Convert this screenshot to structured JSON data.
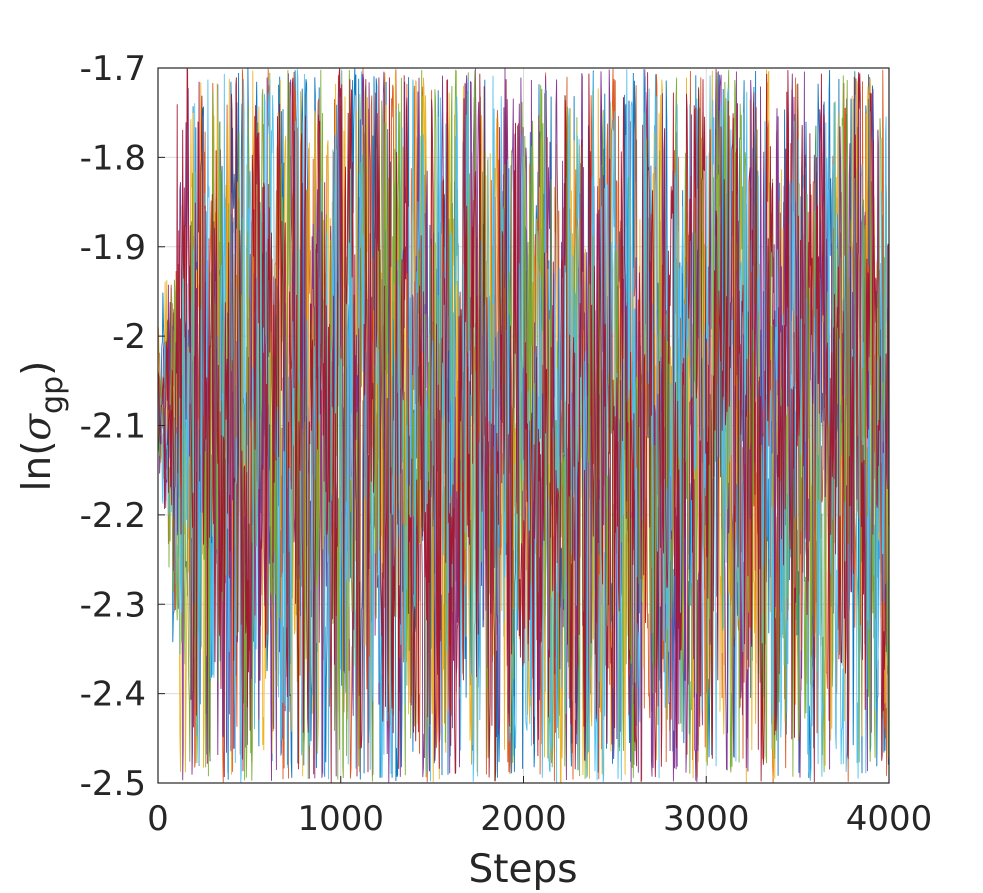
{
  "chart_data": {
    "type": "line",
    "title": "",
    "xlabel": "Steps",
    "ylabel": {
      "prefix": "ln(",
      "symbol": "σ",
      "subscript": "gp",
      "suffix": ")"
    },
    "xlim": [
      0,
      4000
    ],
    "ylim": [
      -2.5,
      -1.7
    ],
    "xticks": [
      0,
      1000,
      2000,
      3000,
      4000
    ],
    "xtick_labels": [
      "0",
      "1000",
      "2000",
      "3000",
      "4000"
    ],
    "yticks": [
      -1.7,
      -1.8,
      -1.9,
      -2.0,
      -2.1,
      -2.2,
      -2.3,
      -2.4,
      -2.5
    ],
    "ytick_labels": [
      "-1.7",
      "-1.8",
      "-1.9",
      "-2",
      "-2.1",
      "-2.2",
      "-2.3",
      "-2.4",
      "-2.5"
    ],
    "grid": true,
    "legend": "none",
    "series_style": "overlapping MCMC trace chains",
    "initial_value": -2.0,
    "stationary_mean": -2.1,
    "stationary_range": [
      -2.5,
      -1.7
    ],
    "series": [
      {
        "color": "#0072BD"
      },
      {
        "color": "#D95319"
      },
      {
        "color": "#EDB120"
      },
      {
        "color": "#7E2F8E"
      },
      {
        "color": "#77AC30"
      },
      {
        "color": "#4DBEEE"
      },
      {
        "color": "#A2142F"
      }
    ],
    "n_steps": 4000
  }
}
